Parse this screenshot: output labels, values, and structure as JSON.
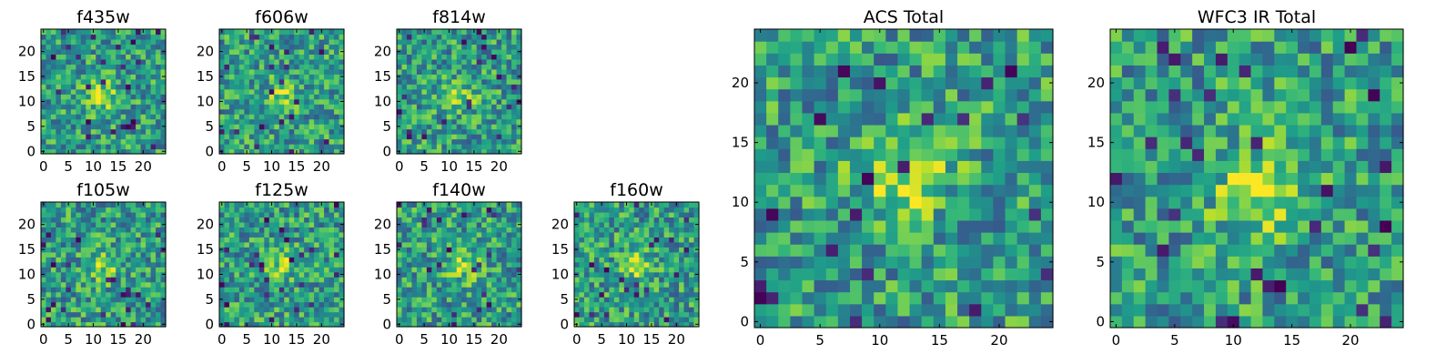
{
  "chart_data": [
    {
      "type": "heatmap",
      "title": "f435w",
      "grid": [
        25,
        25
      ],
      "xlim": [
        0,
        25
      ],
      "ylim": [
        0,
        25
      ],
      "xticks": [
        "0",
        "5",
        "10",
        "15",
        "20"
      ],
      "yticks": [
        "0",
        "5",
        "10",
        "15",
        "20"
      ],
      "source_peak": [
        12,
        11
      ],
      "colormap": "viridis"
    },
    {
      "type": "heatmap",
      "title": "f606w",
      "grid": [
        25,
        25
      ],
      "xlim": [
        0,
        25
      ],
      "ylim": [
        0,
        25
      ],
      "xticks": [
        "0",
        "5",
        "10",
        "15",
        "20"
      ],
      "yticks": [
        "0",
        "5",
        "10",
        "15",
        "20"
      ],
      "source_peak": [
        12,
        11
      ],
      "colormap": "viridis"
    },
    {
      "type": "heatmap",
      "title": "f814w",
      "grid": [
        25,
        25
      ],
      "xlim": [
        0,
        25
      ],
      "ylim": [
        0,
        25
      ],
      "xticks": [
        "0",
        "5",
        "10",
        "15",
        "20"
      ],
      "yticks": [
        "0",
        "5",
        "10",
        "15",
        "20"
      ],
      "source_peak": [
        12,
        11
      ],
      "colormap": "viridis"
    },
    {
      "type": "heatmap",
      "title": "f105w",
      "grid": [
        25,
        25
      ],
      "xlim": [
        0,
        25
      ],
      "ylim": [
        0,
        25
      ],
      "xticks": [
        "0",
        "5",
        "10",
        "15",
        "20"
      ],
      "yticks": [
        "0",
        "5",
        "10",
        "15",
        "20"
      ],
      "source_peak": [
        12,
        12
      ],
      "colormap": "viridis"
    },
    {
      "type": "heatmap",
      "title": "f125w",
      "grid": [
        25,
        25
      ],
      "xlim": [
        0,
        25
      ],
      "ylim": [
        0,
        25
      ],
      "xticks": [
        "0",
        "5",
        "10",
        "15",
        "20"
      ],
      "yticks": [
        "0",
        "5",
        "10",
        "15",
        "20"
      ],
      "source_peak": [
        12,
        12
      ],
      "colormap": "viridis"
    },
    {
      "type": "heatmap",
      "title": "f140w",
      "grid": [
        25,
        25
      ],
      "xlim": [
        0,
        25
      ],
      "ylim": [
        0,
        25
      ],
      "xticks": [
        "0",
        "5",
        "10",
        "15",
        "20"
      ],
      "yticks": [
        "0",
        "5",
        "10",
        "15",
        "20"
      ],
      "source_peak": [
        13,
        12
      ],
      "colormap": "viridis"
    },
    {
      "type": "heatmap",
      "title": "f160w",
      "grid": [
        25,
        25
      ],
      "xlim": [
        0,
        25
      ],
      "ylim": [
        0,
        25
      ],
      "xticks": [
        "0",
        "5",
        "10",
        "15",
        "20"
      ],
      "yticks": [
        "0",
        "5",
        "10",
        "15",
        "20"
      ],
      "source_peak": [
        12,
        12
      ],
      "colormap": "viridis"
    },
    {
      "type": "heatmap",
      "title": "ACS Total",
      "grid": [
        25,
        25
      ],
      "xlim": [
        0,
        25
      ],
      "ylim": [
        0,
        25
      ],
      "xticks": [
        "0",
        "5",
        "10",
        "15",
        "20"
      ],
      "yticks": [
        "0",
        "5",
        "10",
        "15",
        "20"
      ],
      "source_peak": [
        12,
        12
      ],
      "colormap": "viridis"
    },
    {
      "type": "heatmap",
      "title": "WFC3 IR Total",
      "grid": [
        25,
        25
      ],
      "xlim": [
        0,
        25
      ],
      "ylim": [
        0,
        25
      ],
      "xticks": [
        "0",
        "5",
        "10",
        "15",
        "20"
      ],
      "yticks": [
        "0",
        "5",
        "10",
        "15",
        "20"
      ],
      "source_peak": [
        12,
        11
      ],
      "colormap": "viridis"
    }
  ]
}
